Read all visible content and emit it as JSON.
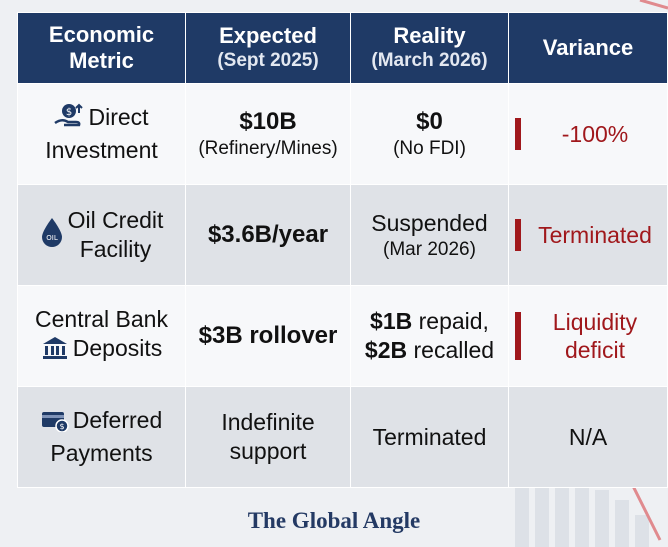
{
  "headers": [
    {
      "main": "Economic\nMetric",
      "sub": ""
    },
    {
      "main": "Expected",
      "sub": "(Sept 2025)"
    },
    {
      "main": "Reality",
      "sub": "(March 2026)"
    },
    {
      "main": "Variance",
      "sub": ""
    }
  ],
  "rows": [
    {
      "icon": "investment-icon",
      "metric_line1": "Direct",
      "metric_line2": "Investment",
      "expected_main": "$10B",
      "expected_sub": "(Refinery/Mines)",
      "reality_main": "$0",
      "reality_sub": "(No FDI)",
      "variance": "-100%"
    },
    {
      "icon": "oil-drop-icon",
      "icon_text": "OIL",
      "metric_line1": "Oil Credit",
      "metric_line2": "Facility",
      "expected_main": "$3.6B/year",
      "reality_line1": "Suspended",
      "reality_line2": "(Mar 2026)",
      "variance": "Terminated"
    },
    {
      "icon": "bank-icon",
      "metric_line1": "Central Bank",
      "metric_line2": "Deposits",
      "expected_main": "$3B rollover",
      "reality_line1": "$1B repaid,",
      "reality_line2": "$2B recalled",
      "variance_line1": "Liquidity",
      "variance_line2": "deficit"
    },
    {
      "icon": "payment-card-icon",
      "metric_line1": "Deferred",
      "metric_line2": "Payments",
      "expected_line1": "Indefinite",
      "expected_line2": "support",
      "reality_main": "Terminated",
      "variance": "N/A"
    }
  ],
  "footer": "The Global Angle",
  "colors": {
    "header_bg": "#1f3a66",
    "variance_red": "#a0181c",
    "row_light": "#f7f8fa",
    "row_dark": "#dfe2e7",
    "footer_text": "#243a64"
  }
}
